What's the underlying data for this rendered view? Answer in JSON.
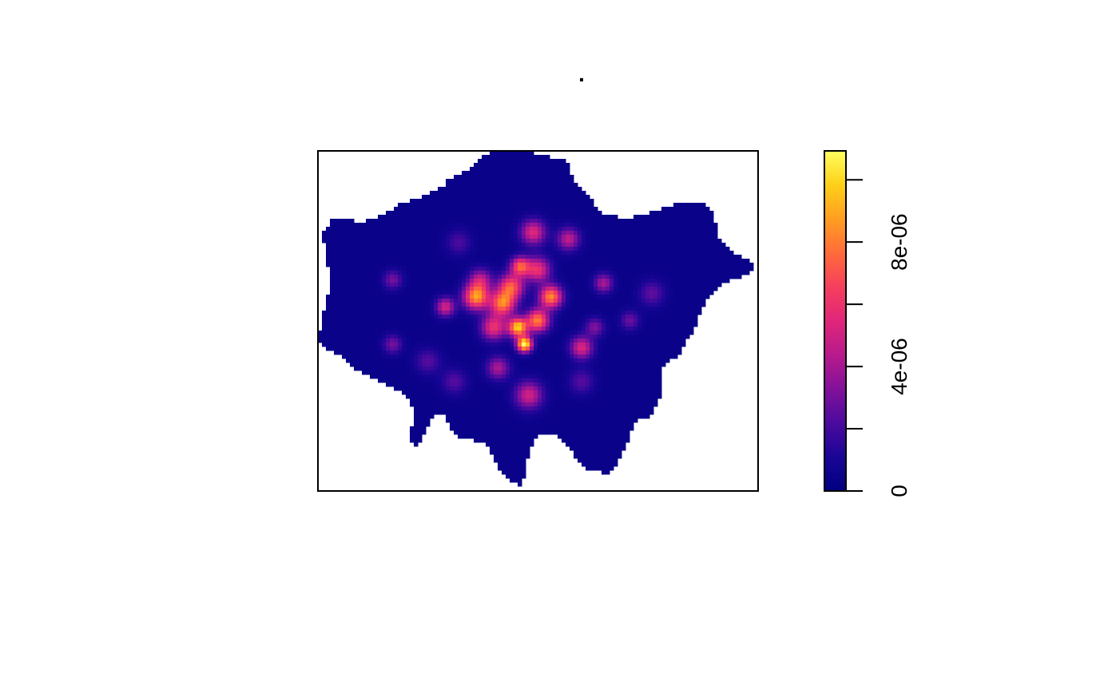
{
  "chart_data": {
    "type": "heatmap",
    "title": ".",
    "xlabel": "",
    "ylabel": "",
    "legend_position": "right",
    "colorbar": {
      "min": 0,
      "max": 1e-05,
      "ticks": [
        {
          "value": 0,
          "label": "0"
        },
        {
          "value": 2e-06,
          "label": ""
        },
        {
          "value": 4e-06,
          "label": "4e-06"
        },
        {
          "value": 6e-06,
          "label": ""
        },
        {
          "value": 8e-06,
          "label": "8e-06"
        },
        {
          "value": 1e-05,
          "label": ""
        }
      ],
      "colors": [
        "#000080",
        "#1a0596",
        "#4b0a9e",
        "#82119a",
        "#b81a8c",
        "#e0267a",
        "#f53f5c",
        "#ff6b3a",
        "#ff9e21",
        "#ffd018",
        "#ffff60"
      ]
    },
    "background_value": 4e-07,
    "hotspots": [
      {
        "x": 0.47,
        "y": 0.57,
        "value": 9.8e-06,
        "spread": 0.012
      },
      {
        "x": 0.455,
        "y": 0.52,
        "value": 8.5e-06,
        "spread": 0.015
      },
      {
        "x": 0.36,
        "y": 0.43,
        "value": 7.5e-06,
        "spread": 0.02
      },
      {
        "x": 0.42,
        "y": 0.45,
        "value": 6.8e-06,
        "spread": 0.02
      },
      {
        "x": 0.53,
        "y": 0.43,
        "value": 7.2e-06,
        "spread": 0.018
      },
      {
        "x": 0.5,
        "y": 0.5,
        "value": 7e-06,
        "spread": 0.018
      },
      {
        "x": 0.46,
        "y": 0.34,
        "value": 5.8e-06,
        "spread": 0.015
      },
      {
        "x": 0.5,
        "y": 0.35,
        "value": 5e-06,
        "spread": 0.02
      },
      {
        "x": 0.49,
        "y": 0.24,
        "value": 4.6e-06,
        "spread": 0.02
      },
      {
        "x": 0.57,
        "y": 0.26,
        "value": 3.8e-06,
        "spread": 0.018
      },
      {
        "x": 0.4,
        "y": 0.52,
        "value": 5e-06,
        "spread": 0.02
      },
      {
        "x": 0.29,
        "y": 0.46,
        "value": 4.3e-06,
        "spread": 0.015
      },
      {
        "x": 0.6,
        "y": 0.58,
        "value": 4.5e-06,
        "spread": 0.018
      },
      {
        "x": 0.48,
        "y": 0.72,
        "value": 4.2e-06,
        "spread": 0.022
      },
      {
        "x": 0.41,
        "y": 0.64,
        "value": 3.4e-06,
        "spread": 0.018
      },
      {
        "x": 0.65,
        "y": 0.39,
        "value": 3.4e-06,
        "spread": 0.015
      },
      {
        "x": 0.37,
        "y": 0.38,
        "value": 3.6e-06,
        "spread": 0.018
      },
      {
        "x": 0.44,
        "y": 0.4,
        "value": 6e-06,
        "spread": 0.02
      },
      {
        "x": 0.17,
        "y": 0.38,
        "value": 2.4e-06,
        "spread": 0.015
      },
      {
        "x": 0.17,
        "y": 0.57,
        "value": 2.4e-06,
        "spread": 0.015
      },
      {
        "x": 0.63,
        "y": 0.52,
        "value": 2.6e-06,
        "spread": 0.015
      },
      {
        "x": 0.71,
        "y": 0.5,
        "value": 2.2e-06,
        "spread": 0.015
      },
      {
        "x": 0.76,
        "y": 0.42,
        "value": 2e-06,
        "spread": 0.02
      },
      {
        "x": 0.25,
        "y": 0.62,
        "value": 1.8e-06,
        "spread": 0.02
      },
      {
        "x": 0.31,
        "y": 0.68,
        "value": 1.8e-06,
        "spread": 0.02
      },
      {
        "x": 0.6,
        "y": 0.68,
        "value": 1.8e-06,
        "spread": 0.02
      },
      {
        "x": 0.32,
        "y": 0.27,
        "value": 1.6e-06,
        "spread": 0.02
      }
    ]
  }
}
